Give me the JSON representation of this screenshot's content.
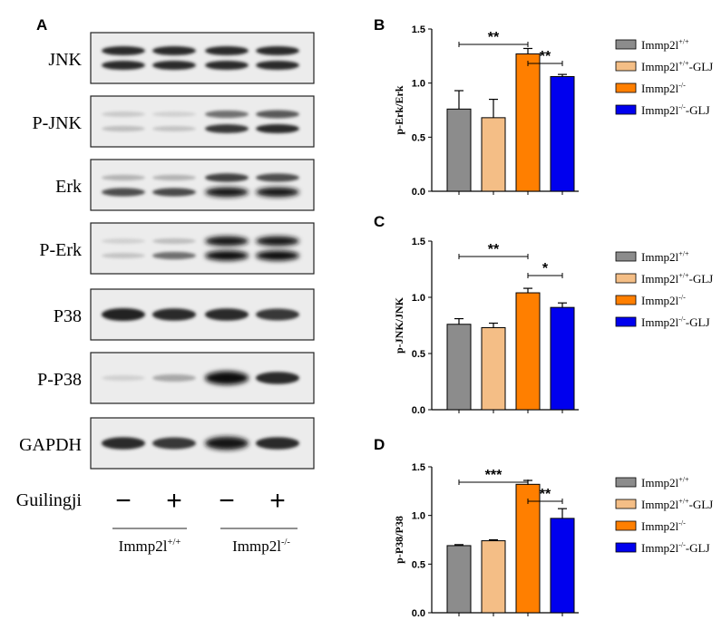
{
  "panels": {
    "A": "A",
    "B": "B",
    "C": "C",
    "D": "D"
  },
  "blot": {
    "proteins": [
      "JNK",
      "P-JNK",
      "Erk",
      "P-Erk",
      "P38",
      "P-P38",
      "GAPDH"
    ],
    "treatment_label": "Guilingji",
    "treatment_marks": [
      "−",
      "+",
      "−",
      "+"
    ],
    "groups": [
      {
        "base": "Immp2l",
        "sup": "+/+"
      },
      {
        "base": "Immp2l",
        "sup": "-/-"
      }
    ]
  },
  "legend": [
    {
      "base": "Immp2l",
      "sup": "+/+",
      "suffix": "",
      "color": "#8c8c8c"
    },
    {
      "base": "Immp2l",
      "sup": "+/+",
      "suffix": "-GLJ",
      "color": "#f4be86"
    },
    {
      "base": "Immp2l",
      "sup": "-/-",
      "suffix": "",
      "color": "#ff7f00"
    },
    {
      "base": "Immp2l",
      "sup": "-/-",
      "suffix": "-GLJ",
      "color": "#0000ee"
    }
  ],
  "chart_data": [
    {
      "panel": "B",
      "type": "bar",
      "ylabel": "p-Erk/Erk",
      "ylim": [
        0,
        1.5
      ],
      "yticks": [
        "0.0",
        "0.5",
        "1.0",
        "1.5"
      ],
      "values": [
        0.76,
        0.68,
        1.27,
        1.06
      ],
      "errors": [
        0.17,
        0.17,
        0.05,
        0.02
      ],
      "significance": [
        {
          "from": 0,
          "to": 2,
          "label": "**"
        },
        {
          "from": 2,
          "to": 3,
          "label": "**"
        }
      ]
    },
    {
      "panel": "C",
      "type": "bar",
      "ylabel": "p-JNK/JNK",
      "ylim": [
        0,
        1.5
      ],
      "yticks": [
        "0.0",
        "0.5",
        "1.0",
        "1.5"
      ],
      "values": [
        0.76,
        0.73,
        1.04,
        0.91
      ],
      "errors": [
        0.05,
        0.04,
        0.04,
        0.04
      ],
      "significance": [
        {
          "from": 0,
          "to": 2,
          "label": "**"
        },
        {
          "from": 2,
          "to": 3,
          "label": "*"
        }
      ]
    },
    {
      "panel": "D",
      "type": "bar",
      "ylabel": "p-P38/P38",
      "ylim": [
        0,
        1.5
      ],
      "yticks": [
        "0.0",
        "0.5",
        "1.0",
        "1.5"
      ],
      "values": [
        0.69,
        0.74,
        1.32,
        0.97
      ],
      "errors": [
        0.01,
        0.01,
        0.04,
        0.1
      ],
      "significance": [
        {
          "from": 0,
          "to": 2,
          "label": "***"
        },
        {
          "from": 2,
          "to": 3,
          "label": "**"
        }
      ]
    }
  ]
}
